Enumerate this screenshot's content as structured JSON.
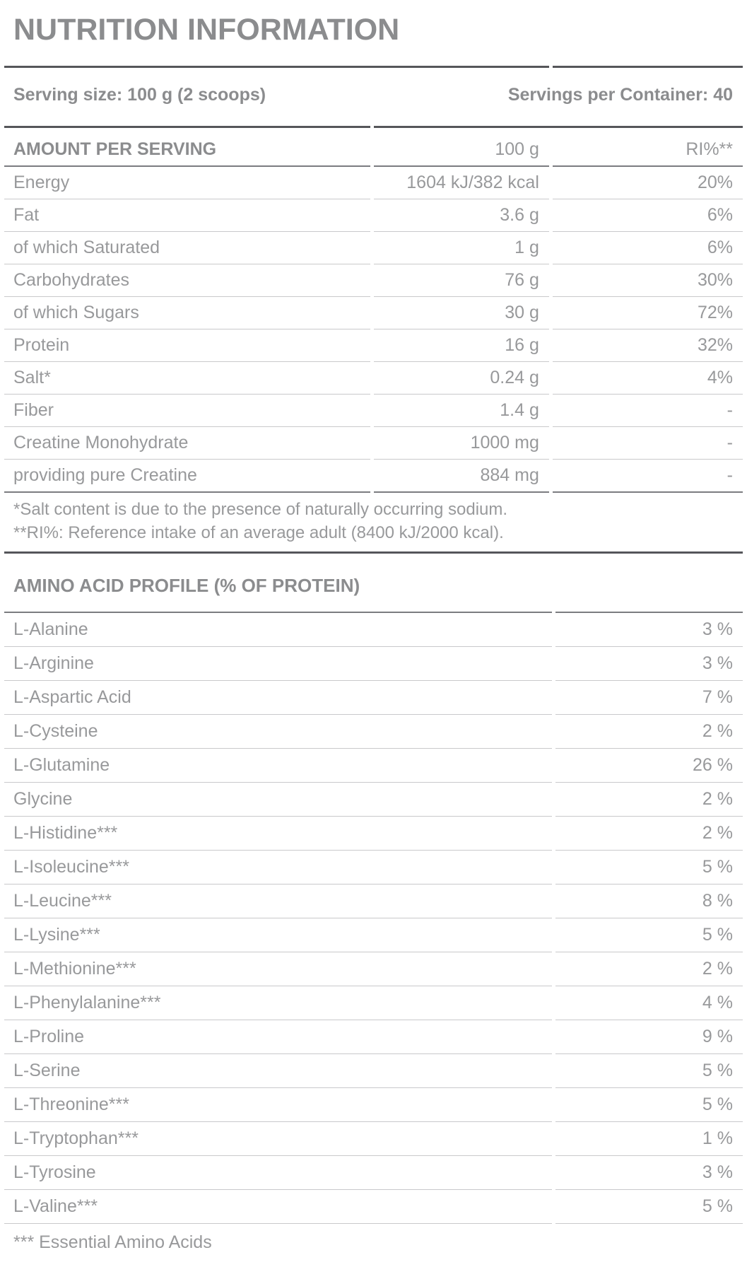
{
  "page": {
    "title": "NUTRITION INFORMATION"
  },
  "serving_info": {
    "serving_size": "Serving size: 100 g (2 scoops)",
    "servings_per_container": "Servings per Container: 40"
  },
  "nutrition_table": {
    "columns": [
      "AMOUNT PER SERVING",
      "100 g",
      "RI%**"
    ],
    "rows": [
      {
        "name": "Energy",
        "amount": "1604 kJ/382 kcal",
        "ri": "20%"
      },
      {
        "name": "Fat",
        "amount": "3.6 g",
        "ri": "6%"
      },
      {
        "name": "of which Saturated",
        "amount": "1 g",
        "ri": "6%"
      },
      {
        "name": "Carbohydrates",
        "amount": "76 g",
        "ri": "30%"
      },
      {
        "name": "of which Sugars",
        "amount": "30 g",
        "ri": "72%"
      },
      {
        "name": "Protein",
        "amount": "16 g",
        "ri": "32%"
      },
      {
        "name": "Salt*",
        "amount": "0.24 g",
        "ri": "4%"
      },
      {
        "name": "Fiber",
        "amount": "1.4 g",
        "ri": "-"
      },
      {
        "name": "Creatine Monohydrate",
        "amount": "1000 mg",
        "ri": "-"
      },
      {
        "name": "providing pure Creatine",
        "amount": "884 mg",
        "ri": "-"
      }
    ],
    "footnotes": [
      "*Salt content is due to the presence of naturally occurring sodium.",
      "**RI%: Reference intake of an average adult (8400 kJ/2000 kcal)."
    ]
  },
  "amino_table": {
    "title": "AMINO ACID PROFILE (% OF PROTEIN)",
    "rows": [
      {
        "name": "L-Alanine",
        "value": "3 %"
      },
      {
        "name": "L-Arginine",
        "value": "3 %"
      },
      {
        "name": "L-Aspartic Acid",
        "value": "7 %"
      },
      {
        "name": "L-Cysteine",
        "value": "2 %"
      },
      {
        "name": "L-Glutamine",
        "value": "26 %"
      },
      {
        "name": "Glycine",
        "value": "2 %"
      },
      {
        "name": "L-Histidine***",
        "value": "2 %"
      },
      {
        "name": "L-Isoleucine***",
        "value": "5 %"
      },
      {
        "name": "L-Leucine***",
        "value": "8 %"
      },
      {
        "name": "L-Lysine***",
        "value": "5 %"
      },
      {
        "name": "L-Methionine***",
        "value": "2 %"
      },
      {
        "name": "L-Phenylalanine***",
        "value": "4 %"
      },
      {
        "name": "L-Proline",
        "value": "9 %"
      },
      {
        "name": "L-Serine",
        "value": "5 %"
      },
      {
        "name": "L-Threonine***",
        "value": "5 %"
      },
      {
        "name": "L-Tryptophan***",
        "value": "1 %"
      },
      {
        "name": "L-Tyrosine",
        "value": "3 %"
      },
      {
        "name": "L-Valine***",
        "value": "5 %"
      }
    ],
    "footnote": "*** Essential Amino Acids"
  },
  "colors": {
    "text": "#98999b",
    "heading_text": "#8b8c8e",
    "rule_thick": "#55565a",
    "rule_medium": "#7b7c80",
    "rule_thin": "#c9c9cb",
    "background": "#ffffff"
  }
}
